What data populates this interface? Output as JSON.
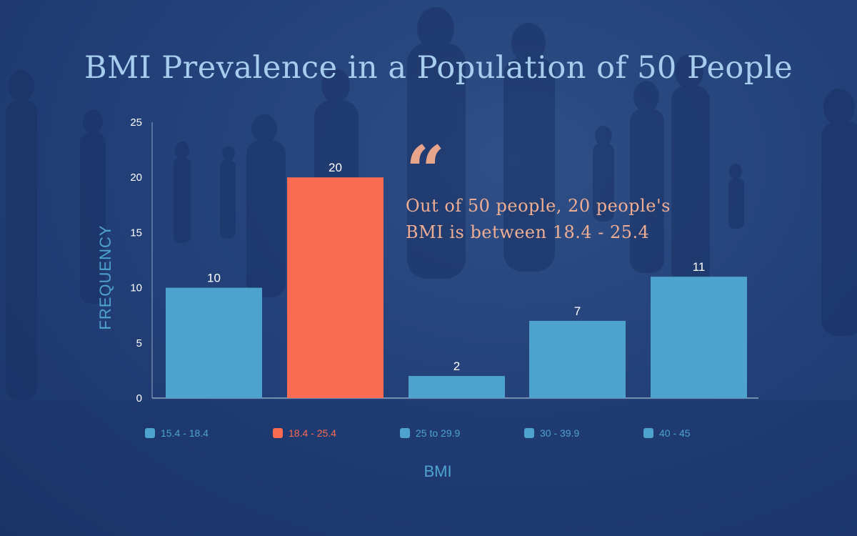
{
  "chart_data": {
    "type": "bar",
    "title": "BMI Prevalence in a Population of 50 People",
    "xlabel": "BMI",
    "ylabel": "FREQUENCY",
    "categories": [
      "15.4 - 18.4",
      "18.4 - 25.4",
      "25 to 29.9",
      "30 - 39.9",
      "40 - 45"
    ],
    "values": [
      10,
      20,
      2,
      7,
      11
    ],
    "ylim": [
      0,
      25
    ],
    "yticks": [
      0,
      5,
      10,
      15,
      20,
      25
    ],
    "highlight_index": 1,
    "colors": {
      "bar": "#4ea3ce",
      "highlight": "#fb6b51",
      "axis": "#8ea6c4",
      "tick_label": "#ffffff",
      "value_label": "#ffffff"
    },
    "legend_position": "bottom"
  },
  "annotation": {
    "quote_mark": "“",
    "text": "Out of 50 people, 20 people's BMI is between 18.4 - 25.4"
  }
}
